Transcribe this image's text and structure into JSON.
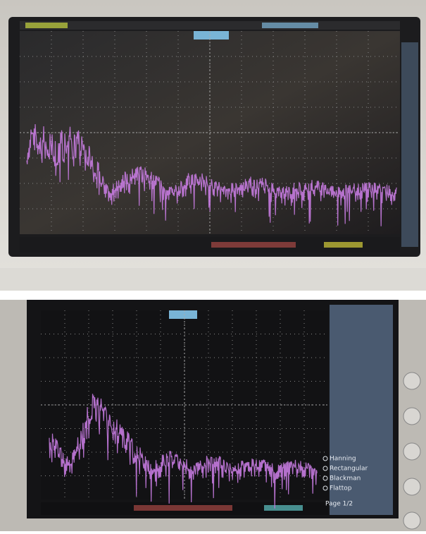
{
  "menu": {
    "items": [
      "Hanning",
      "Rectangular",
      "Blackman",
      "Flattop"
    ],
    "page": "Page 1/2"
  }
}
